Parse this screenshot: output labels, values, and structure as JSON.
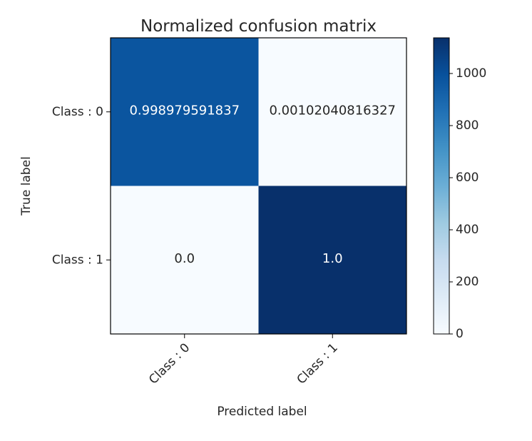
{
  "chart_data": {
    "type": "heatmap",
    "title": "Normalized confusion matrix",
    "xlabel": "Predicted label",
    "ylabel": "True label",
    "x_categories": [
      "Class : 0",
      "Class : 1"
    ],
    "y_categories": [
      "Class : 0",
      "Class : 1"
    ],
    "cell_labels": [
      [
        "0.998979591837",
        "0.00102040816327"
      ],
      [
        "0.0",
        "1.0"
      ]
    ],
    "color_values": [
      [
        979,
        1
      ],
      [
        0,
        1137
      ]
    ],
    "colormap": "Blues",
    "colorbar": {
      "range": [
        0,
        1137
      ],
      "ticks": [
        0,
        200,
        400,
        600,
        800,
        1000
      ]
    },
    "grid": false
  }
}
